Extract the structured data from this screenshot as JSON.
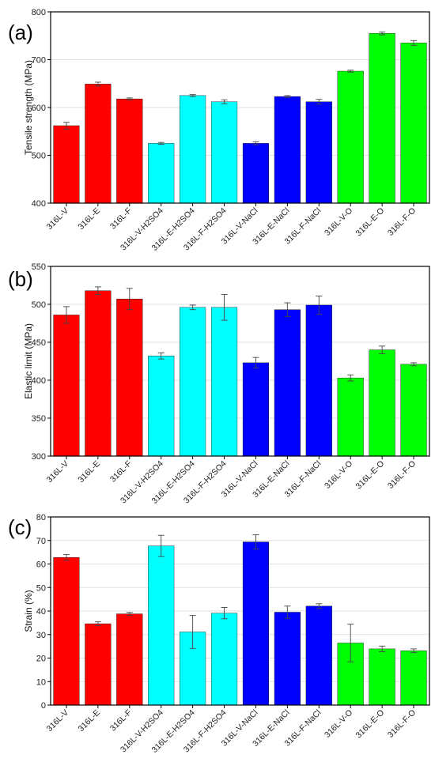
{
  "colors": {
    "red": "#ff0000",
    "cyan": "#00ffff",
    "blue": "#0000ff",
    "green": "#00ff00",
    "axis": "#000000",
    "grid": "#d9d9d9",
    "errorbar": "#444444"
  },
  "chart_data": [
    {
      "type": "bar",
      "panel_label": "(a)",
      "ylabel": "Tensile strength (MPa)",
      "xlabel": "",
      "ylim": [
        400,
        800
      ],
      "yticks": [
        400,
        500,
        600,
        700,
        800
      ],
      "grid": true,
      "categories": [
        "316L-V",
        "316L-E",
        "316L-F",
        "316L-V-H2SO4",
        "316L-E-H2SO4",
        "316L-F-H2SO4",
        "316L-V-NaCl",
        "316L-E-NaCl",
        "316L-F-NaCl",
        "316L-V-O",
        "316L-E-O",
        "316L-F-O"
      ],
      "values": [
        562,
        649,
        618,
        525,
        625,
        612,
        525,
        623,
        612,
        676,
        755,
        735
      ],
      "errors": [
        7,
        4,
        2,
        2,
        2,
        4,
        3,
        2,
        5,
        2,
        3,
        5
      ],
      "bar_colors": [
        "red",
        "red",
        "red",
        "cyan",
        "cyan",
        "cyan",
        "blue",
        "blue",
        "blue",
        "green",
        "green",
        "green"
      ]
    },
    {
      "type": "bar",
      "panel_label": "(b)",
      "ylabel": "Elastic limit (MPa)",
      "xlabel": "",
      "ylim": [
        300,
        550
      ],
      "yticks": [
        300,
        350,
        400,
        450,
        500,
        550
      ],
      "grid": true,
      "categories": [
        "316L-V",
        "316L-E",
        "316L-F",
        "316L-V-H2SO4",
        "316L-E-H2SO4",
        "316L-F-H2SO4",
        "316L-V-NaCl",
        "316L-E-NaCl",
        "316L-F-NaCl",
        "316L-V-O",
        "316L-E-O",
        "316L-F-O"
      ],
      "values": [
        486,
        518,
        507,
        432,
        496,
        496,
        423,
        493,
        499,
        403,
        440,
        421
      ],
      "errors": [
        11,
        5,
        14,
        4,
        3,
        17,
        7,
        9,
        12,
        4,
        5,
        2
      ],
      "bar_colors": [
        "red",
        "red",
        "red",
        "cyan",
        "cyan",
        "cyan",
        "blue",
        "blue",
        "blue",
        "green",
        "green",
        "green"
      ]
    },
    {
      "type": "bar",
      "panel_label": "(c)",
      "ylabel": "Strain (%)",
      "xlabel": "",
      "ylim": [
        0,
        80
      ],
      "yticks": [
        0,
        10,
        20,
        30,
        40,
        50,
        60,
        70,
        80
      ],
      "grid": true,
      "categories": [
        "316L-V",
        "316L-E",
        "316L-F",
        "316L-V-H2SO4",
        "316L-E-H2SO4",
        "316L-F-H2SO4",
        "316L-V-NaCl",
        "316L-E-NaCl",
        "316L-F-NaCl",
        "316L-V-O",
        "316L-E-O",
        "316L-F-O"
      ],
      "values": [
        62.8,
        34.6,
        38.8,
        67.7,
        31.1,
        39.1,
        69.4,
        39.5,
        42.1,
        26.4,
        23.9,
        23.1
      ],
      "errors": [
        1.2,
        0.8,
        0.6,
        4.5,
        7.0,
        2.4,
        3.0,
        2.6,
        1.0,
        8.0,
        1.2,
        0.8
      ],
      "bar_colors": [
        "red",
        "red",
        "red",
        "cyan",
        "cyan",
        "cyan",
        "blue",
        "blue",
        "blue",
        "green",
        "green",
        "green"
      ]
    }
  ]
}
